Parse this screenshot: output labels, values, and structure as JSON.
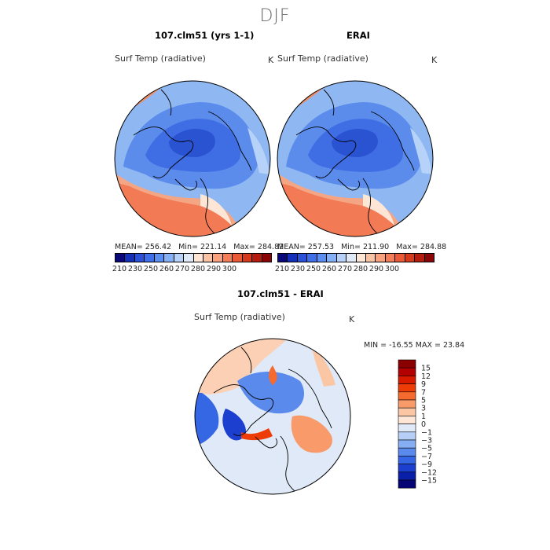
{
  "title": "DJF",
  "panels": [
    {
      "id": "model",
      "title": "107.clm51 (yrs 1-1)",
      "variable": "Surf Temp (radiative)",
      "unit": "K",
      "mean_label": "MEAN=",
      "mean": "256.42",
      "min_label": "Min=",
      "min": "221.14",
      "max_label": "Max=",
      "max": "284.82"
    },
    {
      "id": "obs",
      "title": "ERAI",
      "variable": "Surf Temp (radiative)",
      "unit": "K",
      "mean_label": "MEAN=",
      "mean": "257.53",
      "min_label": "Min=",
      "min": "211.90",
      "max_label": "Max=",
      "max": "284.88"
    },
    {
      "id": "diff",
      "title": "107.clm51 - ERAI",
      "variable": "Surf Temp (radiative)",
      "unit": "K",
      "stats_text": "MIN = -16.55  MAX =  23.84"
    }
  ],
  "abs_colorbar": {
    "labels": [
      "210",
      "230",
      "250",
      "260",
      "270",
      "280",
      "290",
      "300"
    ],
    "colors": [
      "#08087a",
      "#1530b8",
      "#2a52d8",
      "#3e6ee8",
      "#5a8ff0",
      "#86b0f5",
      "#b7d2f8",
      "#dfe9f8",
      "#fde6d6",
      "#fbc3a5",
      "#f8a27f",
      "#f47e5a",
      "#ea5a35",
      "#d53a1e",
      "#b41d0e",
      "#8a0606"
    ]
  },
  "diff_colorbar": {
    "labels": [
      "15",
      "12",
      "9",
      "7",
      "5",
      "3",
      "1",
      "0",
      "−1",
      "−3",
      "−5",
      "−7",
      "−9",
      "−12",
      "−15"
    ],
    "colors": [
      "#8a0000",
      "#b30000",
      "#d81a00",
      "#ee3c06",
      "#f56a2e",
      "#f89a6a",
      "#fbc6a3",
      "#fde6d6",
      "#dfe9f8",
      "#b5cff6",
      "#86aef2",
      "#5a8aec",
      "#3566e4",
      "#1c3fcf",
      "#0a1fa8",
      "#050575"
    ]
  }
}
